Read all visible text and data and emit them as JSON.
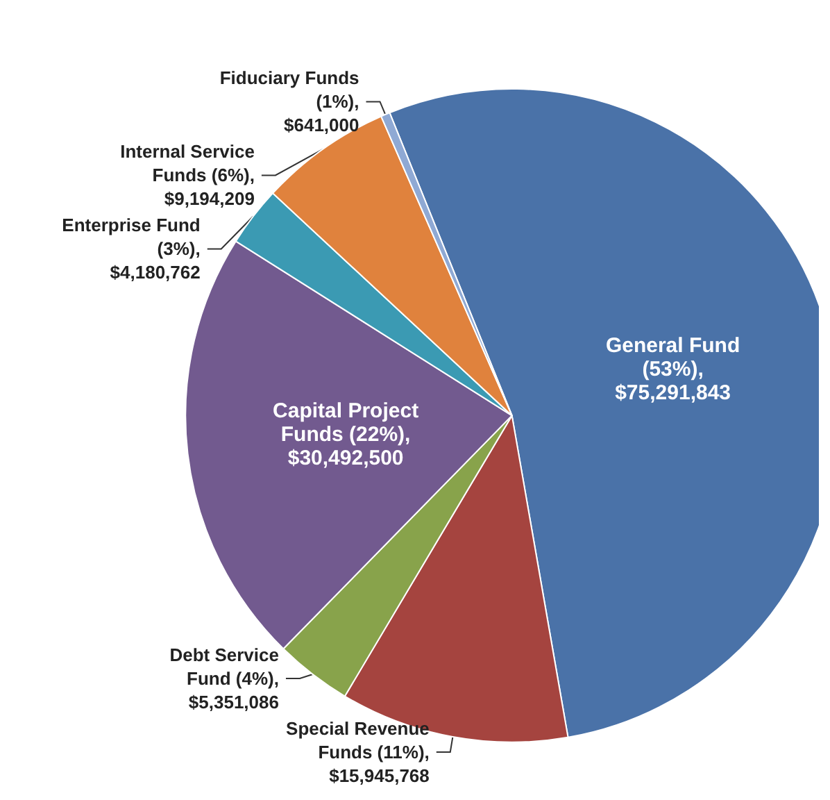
{
  "chart_data": {
    "type": "pie",
    "categories": [
      "General Fund",
      "Special Revenue Funds",
      "Debt Service Fund",
      "Capital Project Funds",
      "Enterprise Fund",
      "Internal Service Funds",
      "Fiduciary Funds"
    ],
    "values": [
      75291843,
      15945768,
      5351086,
      30492500,
      4180762,
      9194209,
      641000
    ],
    "value_labels": [
      "(53%), $75,291,843",
      "(11%), $15,945,768",
      "(4%), $5,351,086",
      "(22%), $30,492,500",
      "(3%), $4,180,762",
      "(6%), $9,194,209",
      "(1%), $641,000"
    ],
    "colors": [
      "#4a72a8",
      "#a5443f",
      "#88a34b",
      "#725a8f",
      "#3b9ab3",
      "#e0823d",
      "#8fa9d4"
    ],
    "legend": false
  }
}
